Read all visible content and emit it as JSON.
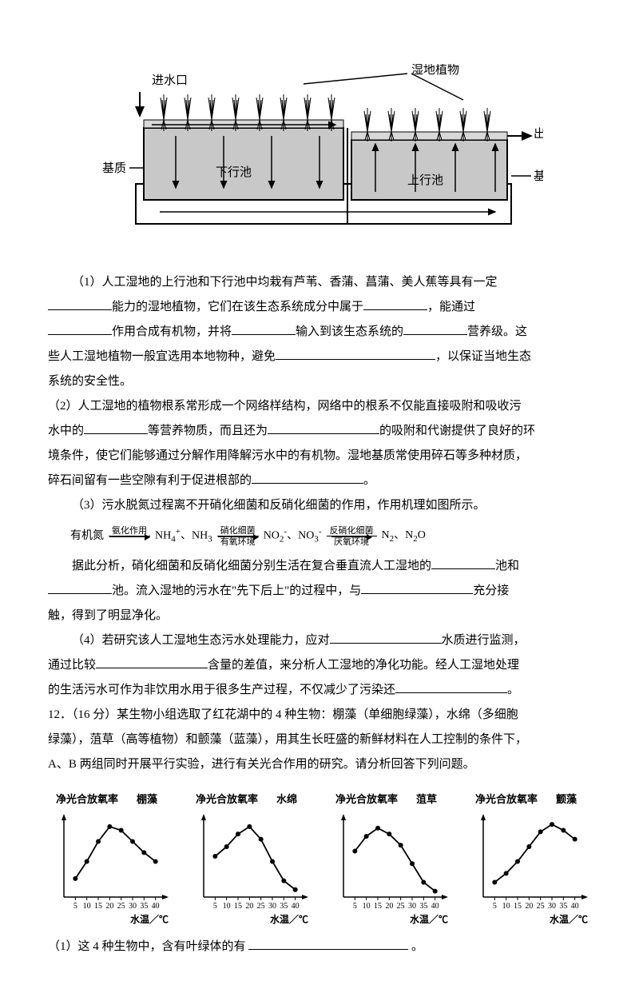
{
  "wetland_diagram": {
    "labels": {
      "inlet": "进水口",
      "wetland_plants": "湿地植物",
      "outlet": "出水口",
      "substrate_left": "基质",
      "substrate_right": "基质",
      "down_pool": "下行池",
      "up_pool": "上行池"
    },
    "colors": {
      "water": "#d0d0d0",
      "substrate": "#c8c8c8",
      "border": "#000000",
      "plant": "#000000"
    }
  },
  "questions": {
    "q1": {
      "line1": "（1）人工湿地的上行池和下行池中均栽有芦苇、香蒲、菖蒲、美人蕉等具有一定",
      "line2a": "能力的湿地植物，它们在该生态系统成分中属于",
      "line2b": "，能通过",
      "line3a": "作用合成有机物，并将",
      "line3b": "输入到该生态系统的",
      "line3c": "营养级。这",
      "line4a": "些人工湿地植物一般宜选用本地物种，避免",
      "line4b": "，以保证当地生态",
      "line5": "系统的安全性。"
    },
    "q2": {
      "line1": "（2）人工湿地的植物根系常形成一个网络样结构，网络中的根系不仅能直接吸附和吸收污",
      "line2a": "水中的",
      "line2b": "等营养物质，而且还为",
      "line2c": "的吸附和代谢提供了良好的环",
      "line3": "境条件，使它们能够通过分解作用降解污水中的有机物。湿地基质常使用碎石等多种材质，",
      "line4a": "碎石间留有一些空隙有利于促进根部的",
      "line4b": "。"
    },
    "q3": {
      "intro": "（3）污水脱氮过程离不开硝化细菌和反硝化细菌的作用，作用机理如图所示。",
      "reaction": {
        "r1": "有机氮",
        "a1_top": "氨化作用",
        "r2": "NH₄⁺、NH₃",
        "a2_top": "硝化细菌",
        "a2_bot": "有氧环境",
        "r3": "NO₂⁻、NO₃⁻",
        "a3_top": "反硝化细菌",
        "a3_bot": "厌氧环境",
        "r4": "N₂、N₂O"
      },
      "line1a": "据此分析，硝化细菌和反硝化细菌分别生活在复合垂直流人工湿地的",
      "line1b": "池和",
      "line2a": "池。流入湿地的污水在\"先下后上\"的过程中，与",
      "line2b": "充分接",
      "line3": "触，得到了明显净化。"
    },
    "q4": {
      "line1a": "（4）若研究该人工湿地生态污水处理能力，应对",
      "line1b": "水质进行监测，",
      "line2a": "通过比较",
      "line2b": "含量的差值，来分析人工湿地的净化功能。经人工湿地处理",
      "line3a": "的生活污水可作为非饮用水用于很多生产过程，不仅减少了污染还",
      "line3b": "。"
    }
  },
  "q12": {
    "line1": "12．（16 分）某生物小组选取了红花湖中的 4 种生物：棚藻（单细胞绿藻），水绵（多细胞",
    "line2": "绿藻），菹草（高等植物）和颤藻（蓝藻），用其生长旺盛的新鲜材料在人工控制的条件下，",
    "line3": "A、B 两组同时开展平行实验，进行有关光合作用的研究。请分析回答下列问题。",
    "sub_q1": "（1）这 4 种生物中，含有叶绿体的有",
    "sub_q1_end": "。"
  },
  "charts": {
    "ylabel": "净光合放氧率",
    "xlabel": "水温／℃",
    "unitC": "℃",
    "xticks": [
      5,
      10,
      15,
      20,
      25,
      30,
      35,
      40
    ],
    "xlim": [
      0,
      45
    ],
    "ylim": [
      0,
      110
    ],
    "series": [
      {
        "name": "棚藻",
        "points": [
          [
            5,
            25
          ],
          [
            10,
            48
          ],
          [
            15,
            75
          ],
          [
            20,
            95
          ],
          [
            25,
            90
          ],
          [
            30,
            75
          ],
          [
            35,
            60
          ],
          [
            40,
            48
          ]
        ]
      },
      {
        "name": "水绵",
        "points": [
          [
            5,
            55
          ],
          [
            10,
            68
          ],
          [
            15,
            85
          ],
          [
            20,
            95
          ],
          [
            25,
            78
          ],
          [
            30,
            48
          ],
          [
            35,
            22
          ],
          [
            40,
            10
          ]
        ]
      },
      {
        "name": "菹草",
        "points": [
          [
            5,
            62
          ],
          [
            10,
            82
          ],
          [
            15,
            93
          ],
          [
            20,
            85
          ],
          [
            25,
            70
          ],
          [
            30,
            45
          ],
          [
            35,
            20
          ],
          [
            40,
            8
          ]
        ]
      },
      {
        "name": "颤藻",
        "points": [
          [
            5,
            20
          ],
          [
            10,
            32
          ],
          [
            15,
            48
          ],
          [
            20,
            68
          ],
          [
            25,
            88
          ],
          [
            30,
            98
          ],
          [
            35,
            90
          ],
          [
            40,
            78
          ]
        ]
      }
    ],
    "style": {
      "line_color": "#000000",
      "marker": "circle",
      "marker_size": 3,
      "line_width": 1.8,
      "axis_color": "#000000",
      "font_size": 12,
      "title_fontsize": 13
    }
  }
}
